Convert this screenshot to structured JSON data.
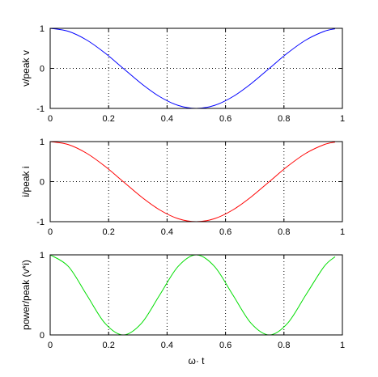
{
  "chart_data": [
    {
      "type": "line",
      "xlabel": "",
      "ylabel": "v/peak v",
      "xlim": [
        0,
        1
      ],
      "ylim": [
        -1,
        1
      ],
      "xticks": [
        "0",
        "0.2",
        "0.4",
        "0.6",
        "0.8",
        "1"
      ],
      "yticks": [
        "-1",
        "0",
        "1"
      ],
      "grid": true,
      "series": [
        {
          "color": "#0000ff",
          "x": [
            0,
            0.0625,
            0.125,
            0.1875,
            0.25,
            0.3125,
            0.375,
            0.4375,
            0.5,
            0.5625,
            0.625,
            0.6875,
            0.75,
            0.8125,
            0.875,
            0.9375,
            0.975
          ],
          "values": [
            1,
            0.924,
            0.707,
            0.383,
            0,
            -0.383,
            -0.707,
            -0.924,
            -1,
            -0.924,
            -0.707,
            -0.383,
            0,
            0.383,
            0.707,
            0.924,
            0.988
          ]
        }
      ]
    },
    {
      "type": "line",
      "xlabel": "",
      "ylabel": "i/peak i",
      "xlim": [
        0,
        1
      ],
      "ylim": [
        -1,
        1
      ],
      "xticks": [
        "0",
        "0.2",
        "0.4",
        "0.6",
        "0.8",
        "1"
      ],
      "yticks": [
        "-1",
        "0",
        "1"
      ],
      "grid": true,
      "series": [
        {
          "color": "#ff0000",
          "x": [
            0,
            0.0625,
            0.125,
            0.1875,
            0.25,
            0.3125,
            0.375,
            0.4375,
            0.5,
            0.5625,
            0.625,
            0.6875,
            0.75,
            0.8125,
            0.875,
            0.9375,
            0.975
          ],
          "values": [
            1,
            0.924,
            0.707,
            0.383,
            0,
            -0.383,
            -0.707,
            -0.924,
            -1,
            -0.924,
            -0.707,
            -0.383,
            0,
            0.383,
            0.707,
            0.924,
            0.988
          ]
        }
      ]
    },
    {
      "type": "line",
      "xlabel": "ω· t",
      "ylabel": "power/peak (v*i)",
      "xlim": [
        0,
        1
      ],
      "ylim": [
        0,
        1
      ],
      "xticks": [
        "0",
        "0.2",
        "0.4",
        "0.6",
        "0.8",
        "1"
      ],
      "yticks": [
        "0",
        "1"
      ],
      "grid": true,
      "series": [
        {
          "color": "#00dd00",
          "x": [
            0,
            0.0625,
            0.125,
            0.1875,
            0.25,
            0.3125,
            0.375,
            0.4375,
            0.5,
            0.5625,
            0.625,
            0.6875,
            0.75,
            0.8125,
            0.875,
            0.9375,
            0.975
          ],
          "values": [
            1,
            0.854,
            0.5,
            0.146,
            0,
            0.146,
            0.5,
            0.854,
            1,
            0.854,
            0.5,
            0.146,
            0,
            0.146,
            0.5,
            0.854,
            0.976
          ]
        }
      ]
    }
  ]
}
